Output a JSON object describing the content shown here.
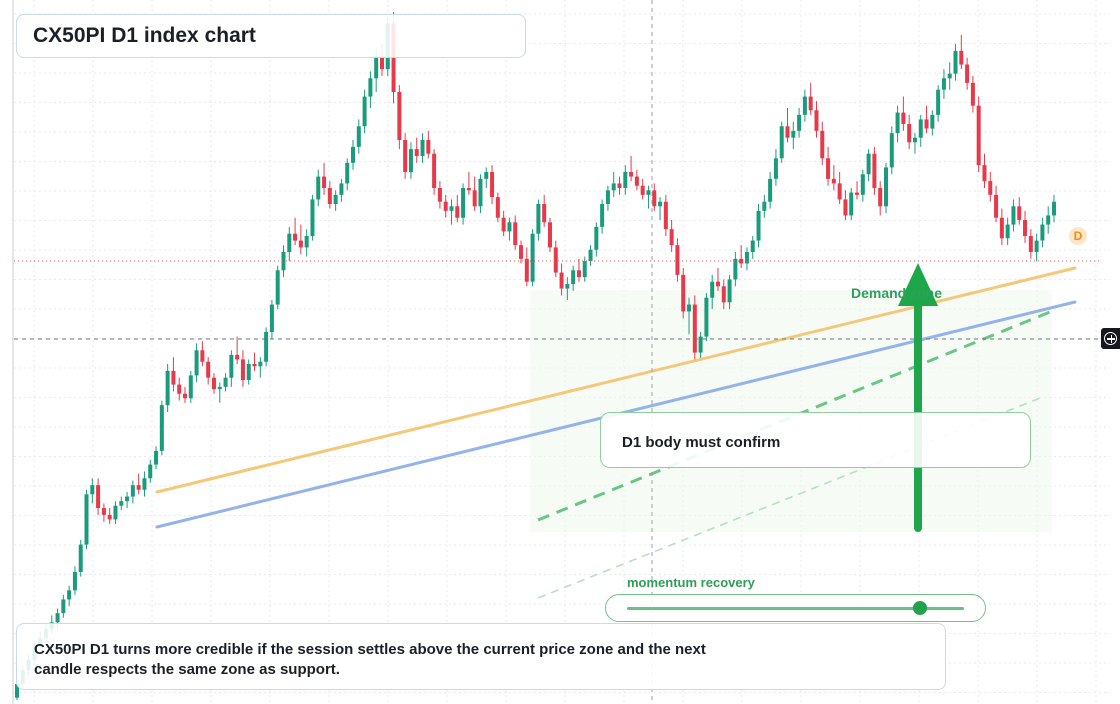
{
  "title": "CX50PI D1 index chart",
  "annotations": {
    "zone_label": "Demand zone",
    "confirm_note": "D1 body must confirm",
    "slider_label": "momentum recovery",
    "slider_value": 0.87,
    "marker_letter": "D"
  },
  "note": "CX50PI D1 turns more credible if the session settles above the current price zone and the next candle respects the same zone as support.",
  "colors": {
    "up": "#1a9c7c",
    "down": "#e8394a",
    "trend_orange": "#f5c878",
    "trend_blue": "#93b3ea",
    "accent_green": "#1ea64a",
    "price_line": "#d9534f"
  },
  "icons": {
    "crosshair": "crosshair-plus-icon"
  },
  "chart_data": {
    "type": "candlestick",
    "title": "CX50PI D1 index chart",
    "grid": true,
    "last_price_line": true,
    "candles": [
      {
        "o": 80,
        "h": 95,
        "l": 78,
        "c": 92
      },
      {
        "o": 92,
        "h": 108,
        "l": 88,
        "c": 104
      },
      {
        "o": 104,
        "h": 118,
        "l": 100,
        "c": 113
      },
      {
        "o": 113,
        "h": 130,
        "l": 110,
        "c": 126
      },
      {
        "o": 126,
        "h": 138,
        "l": 122,
        "c": 132
      },
      {
        "o": 132,
        "h": 145,
        "l": 128,
        "c": 140
      },
      {
        "o": 140,
        "h": 152,
        "l": 136,
        "c": 146
      },
      {
        "o": 146,
        "h": 158,
        "l": 140,
        "c": 154
      },
      {
        "o": 154,
        "h": 170,
        "l": 150,
        "c": 166
      },
      {
        "o": 166,
        "h": 178,
        "l": 160,
        "c": 174
      },
      {
        "o": 174,
        "h": 195,
        "l": 170,
        "c": 190
      },
      {
        "o": 190,
        "h": 218,
        "l": 186,
        "c": 214
      },
      {
        "o": 214,
        "h": 262,
        "l": 210,
        "c": 258
      },
      {
        "o": 258,
        "h": 272,
        "l": 250,
        "c": 266
      },
      {
        "o": 266,
        "h": 272,
        "l": 240,
        "c": 246
      },
      {
        "o": 246,
        "h": 250,
        "l": 234,
        "c": 240
      },
      {
        "o": 240,
        "h": 246,
        "l": 232,
        "c": 236
      },
      {
        "o": 236,
        "h": 252,
        "l": 232,
        "c": 248
      },
      {
        "o": 248,
        "h": 256,
        "l": 244,
        "c": 252
      },
      {
        "o": 252,
        "h": 260,
        "l": 246,
        "c": 256
      },
      {
        "o": 256,
        "h": 270,
        "l": 250,
        "c": 266
      },
      {
        "o": 266,
        "h": 276,
        "l": 258,
        "c": 262
      },
      {
        "o": 262,
        "h": 278,
        "l": 256,
        "c": 272
      },
      {
        "o": 272,
        "h": 288,
        "l": 268,
        "c": 284
      },
      {
        "o": 284,
        "h": 300,
        "l": 280,
        "c": 296
      },
      {
        "o": 296,
        "h": 340,
        "l": 292,
        "c": 336
      },
      {
        "o": 336,
        "h": 372,
        "l": 330,
        "c": 366
      },
      {
        "o": 366,
        "h": 378,
        "l": 348,
        "c": 354
      },
      {
        "o": 354,
        "h": 360,
        "l": 340,
        "c": 346
      },
      {
        "o": 346,
        "h": 352,
        "l": 338,
        "c": 342
      },
      {
        "o": 342,
        "h": 366,
        "l": 338,
        "c": 362
      },
      {
        "o": 362,
        "h": 390,
        "l": 356,
        "c": 384
      },
      {
        "o": 384,
        "h": 392,
        "l": 370,
        "c": 374
      },
      {
        "o": 374,
        "h": 378,
        "l": 354,
        "c": 360
      },
      {
        "o": 360,
        "h": 364,
        "l": 346,
        "c": 350
      },
      {
        "o": 350,
        "h": 356,
        "l": 338,
        "c": 352
      },
      {
        "o": 352,
        "h": 364,
        "l": 348,
        "c": 360
      },
      {
        "o": 360,
        "h": 384,
        "l": 352,
        "c": 380
      },
      {
        "o": 380,
        "h": 396,
        "l": 372,
        "c": 376
      },
      {
        "o": 376,
        "h": 384,
        "l": 352,
        "c": 358
      },
      {
        "o": 358,
        "h": 376,
        "l": 354,
        "c": 372
      },
      {
        "o": 372,
        "h": 382,
        "l": 366,
        "c": 370
      },
      {
        "o": 370,
        "h": 378,
        "l": 360,
        "c": 374
      },
      {
        "o": 374,
        "h": 404,
        "l": 370,
        "c": 400
      },
      {
        "o": 400,
        "h": 428,
        "l": 394,
        "c": 424
      },
      {
        "o": 424,
        "h": 458,
        "l": 420,
        "c": 454
      },
      {
        "o": 454,
        "h": 476,
        "l": 448,
        "c": 470
      },
      {
        "o": 470,
        "h": 492,
        "l": 462,
        "c": 486
      },
      {
        "o": 486,
        "h": 500,
        "l": 476,
        "c": 480
      },
      {
        "o": 480,
        "h": 494,
        "l": 468,
        "c": 474
      },
      {
        "o": 474,
        "h": 490,
        "l": 466,
        "c": 484
      },
      {
        "o": 484,
        "h": 520,
        "l": 480,
        "c": 516
      },
      {
        "o": 516,
        "h": 542,
        "l": 510,
        "c": 536
      },
      {
        "o": 536,
        "h": 548,
        "l": 520,
        "c": 526
      },
      {
        "o": 526,
        "h": 532,
        "l": 508,
        "c": 512
      },
      {
        "o": 512,
        "h": 524,
        "l": 506,
        "c": 520
      },
      {
        "o": 520,
        "h": 534,
        "l": 514,
        "c": 530
      },
      {
        "o": 530,
        "h": 552,
        "l": 524,
        "c": 548
      },
      {
        "o": 548,
        "h": 568,
        "l": 542,
        "c": 562
      },
      {
        "o": 562,
        "h": 586,
        "l": 556,
        "c": 580
      },
      {
        "o": 580,
        "h": 612,
        "l": 574,
        "c": 606
      },
      {
        "o": 606,
        "h": 628,
        "l": 596,
        "c": 622
      },
      {
        "o": 622,
        "h": 648,
        "l": 610,
        "c": 640
      },
      {
        "o": 640,
        "h": 652,
        "l": 624,
        "c": 630
      },
      {
        "o": 630,
        "h": 676,
        "l": 624,
        "c": 670
      },
      {
        "o": 670,
        "h": 680,
        "l": 600,
        "c": 610
      },
      {
        "o": 610,
        "h": 616,
        "l": 560,
        "c": 568
      },
      {
        "o": 568,
        "h": 574,
        "l": 534,
        "c": 540
      },
      {
        "o": 540,
        "h": 566,
        "l": 534,
        "c": 560
      },
      {
        "o": 560,
        "h": 570,
        "l": 548,
        "c": 554
      },
      {
        "o": 554,
        "h": 574,
        "l": 548,
        "c": 568
      },
      {
        "o": 568,
        "h": 576,
        "l": 552,
        "c": 556
      },
      {
        "o": 556,
        "h": 560,
        "l": 520,
        "c": 526
      },
      {
        "o": 526,
        "h": 532,
        "l": 508,
        "c": 514
      },
      {
        "o": 514,
        "h": 520,
        "l": 500,
        "c": 506
      },
      {
        "o": 506,
        "h": 516,
        "l": 494,
        "c": 510
      },
      {
        "o": 510,
        "h": 520,
        "l": 496,
        "c": 500
      },
      {
        "o": 500,
        "h": 530,
        "l": 494,
        "c": 526
      },
      {
        "o": 526,
        "h": 540,
        "l": 520,
        "c": 524
      },
      {
        "o": 524,
        "h": 536,
        "l": 506,
        "c": 510
      },
      {
        "o": 510,
        "h": 538,
        "l": 504,
        "c": 534
      },
      {
        "o": 534,
        "h": 544,
        "l": 526,
        "c": 540
      },
      {
        "o": 540,
        "h": 546,
        "l": 512,
        "c": 518
      },
      {
        "o": 518,
        "h": 522,
        "l": 496,
        "c": 500
      },
      {
        "o": 500,
        "h": 506,
        "l": 484,
        "c": 488
      },
      {
        "o": 488,
        "h": 500,
        "l": 480,
        "c": 496
      },
      {
        "o": 496,
        "h": 502,
        "l": 472,
        "c": 476
      },
      {
        "o": 476,
        "h": 480,
        "l": 460,
        "c": 464
      },
      {
        "o": 464,
        "h": 474,
        "l": 440,
        "c": 444
      },
      {
        "o": 444,
        "h": 490,
        "l": 440,
        "c": 486
      },
      {
        "o": 486,
        "h": 516,
        "l": 480,
        "c": 512
      },
      {
        "o": 512,
        "h": 520,
        "l": 492,
        "c": 496
      },
      {
        "o": 496,
        "h": 500,
        "l": 470,
        "c": 474
      },
      {
        "o": 474,
        "h": 480,
        "l": 448,
        "c": 452
      },
      {
        "o": 452,
        "h": 460,
        "l": 432,
        "c": 438
      },
      {
        "o": 438,
        "h": 448,
        "l": 428,
        "c": 442
      },
      {
        "o": 442,
        "h": 458,
        "l": 436,
        "c": 454
      },
      {
        "o": 454,
        "h": 464,
        "l": 444,
        "c": 448
      },
      {
        "o": 448,
        "h": 466,
        "l": 444,
        "c": 462
      },
      {
        "o": 462,
        "h": 476,
        "l": 458,
        "c": 472
      },
      {
        "o": 472,
        "h": 496,
        "l": 466,
        "c": 492
      },
      {
        "o": 492,
        "h": 516,
        "l": 486,
        "c": 512
      },
      {
        "o": 512,
        "h": 528,
        "l": 506,
        "c": 524
      },
      {
        "o": 524,
        "h": 540,
        "l": 518,
        "c": 530
      },
      {
        "o": 530,
        "h": 536,
        "l": 520,
        "c": 526
      },
      {
        "o": 526,
        "h": 546,
        "l": 520,
        "c": 540
      },
      {
        "o": 540,
        "h": 554,
        "l": 532,
        "c": 536
      },
      {
        "o": 536,
        "h": 542,
        "l": 524,
        "c": 528
      },
      {
        "o": 528,
        "h": 534,
        "l": 516,
        "c": 520
      },
      {
        "o": 520,
        "h": 528,
        "l": 508,
        "c": 524
      },
      {
        "o": 524,
        "h": 530,
        "l": 506,
        "c": 510
      },
      {
        "o": 510,
        "h": 518,
        "l": 498,
        "c": 514
      },
      {
        "o": 514,
        "h": 520,
        "l": 484,
        "c": 490
      },
      {
        "o": 490,
        "h": 498,
        "l": 470,
        "c": 476
      },
      {
        "o": 476,
        "h": 482,
        "l": 444,
        "c": 450
      },
      {
        "o": 450,
        "h": 456,
        "l": 412,
        "c": 418
      },
      {
        "o": 418,
        "h": 430,
        "l": 398,
        "c": 424
      },
      {
        "o": 424,
        "h": 432,
        "l": 376,
        "c": 382
      },
      {
        "o": 382,
        "h": 400,
        "l": 376,
        "c": 396
      },
      {
        "o": 396,
        "h": 434,
        "l": 392,
        "c": 430
      },
      {
        "o": 430,
        "h": 450,
        "l": 420,
        "c": 444
      },
      {
        "o": 444,
        "h": 456,
        "l": 436,
        "c": 440
      },
      {
        "o": 440,
        "h": 446,
        "l": 420,
        "c": 426
      },
      {
        "o": 426,
        "h": 450,
        "l": 420,
        "c": 446
      },
      {
        "o": 446,
        "h": 470,
        "l": 440,
        "c": 464
      },
      {
        "o": 464,
        "h": 476,
        "l": 456,
        "c": 460
      },
      {
        "o": 460,
        "h": 474,
        "l": 454,
        "c": 470
      },
      {
        "o": 470,
        "h": 484,
        "l": 464,
        "c": 480
      },
      {
        "o": 480,
        "h": 512,
        "l": 474,
        "c": 506
      },
      {
        "o": 506,
        "h": 520,
        "l": 500,
        "c": 514
      },
      {
        "o": 514,
        "h": 540,
        "l": 508,
        "c": 534
      },
      {
        "o": 534,
        "h": 560,
        "l": 528,
        "c": 552
      },
      {
        "o": 552,
        "h": 584,
        "l": 548,
        "c": 580
      },
      {
        "o": 580,
        "h": 596,
        "l": 566,
        "c": 570
      },
      {
        "o": 570,
        "h": 584,
        "l": 560,
        "c": 576
      },
      {
        "o": 576,
        "h": 596,
        "l": 570,
        "c": 590
      },
      {
        "o": 590,
        "h": 612,
        "l": 584,
        "c": 606
      },
      {
        "o": 606,
        "h": 618,
        "l": 590,
        "c": 594
      },
      {
        "o": 594,
        "h": 602,
        "l": 570,
        "c": 576
      },
      {
        "o": 576,
        "h": 584,
        "l": 546,
        "c": 552
      },
      {
        "o": 552,
        "h": 562,
        "l": 528,
        "c": 534
      },
      {
        "o": 534,
        "h": 546,
        "l": 524,
        "c": 530
      },
      {
        "o": 530,
        "h": 540,
        "l": 512,
        "c": 516
      },
      {
        "o": 516,
        "h": 524,
        "l": 498,
        "c": 502
      },
      {
        "o": 502,
        "h": 526,
        "l": 498,
        "c": 522
      },
      {
        "o": 522,
        "h": 532,
        "l": 516,
        "c": 520
      },
      {
        "o": 520,
        "h": 542,
        "l": 514,
        "c": 538
      },
      {
        "o": 538,
        "h": 560,
        "l": 532,
        "c": 556
      },
      {
        "o": 556,
        "h": 562,
        "l": 520,
        "c": 526
      },
      {
        "o": 526,
        "h": 532,
        "l": 502,
        "c": 510
      },
      {
        "o": 510,
        "h": 548,
        "l": 504,
        "c": 544
      },
      {
        "o": 544,
        "h": 580,
        "l": 538,
        "c": 574
      },
      {
        "o": 574,
        "h": 598,
        "l": 566,
        "c": 592
      },
      {
        "o": 592,
        "h": 606,
        "l": 576,
        "c": 582
      },
      {
        "o": 582,
        "h": 590,
        "l": 560,
        "c": 566
      },
      {
        "o": 566,
        "h": 574,
        "l": 556,
        "c": 570
      },
      {
        "o": 570,
        "h": 590,
        "l": 562,
        "c": 586
      },
      {
        "o": 586,
        "h": 598,
        "l": 574,
        "c": 578
      },
      {
        "o": 578,
        "h": 594,
        "l": 572,
        "c": 590
      },
      {
        "o": 590,
        "h": 616,
        "l": 584,
        "c": 612
      },
      {
        "o": 612,
        "h": 630,
        "l": 604,
        "c": 622
      },
      {
        "o": 622,
        "h": 636,
        "l": 612,
        "c": 626
      },
      {
        "o": 626,
        "h": 652,
        "l": 620,
        "c": 646
      },
      {
        "o": 646,
        "h": 660,
        "l": 630,
        "c": 634
      },
      {
        "o": 634,
        "h": 640,
        "l": 612,
        "c": 618
      },
      {
        "o": 618,
        "h": 624,
        "l": 592,
        "c": 598
      },
      {
        "o": 598,
        "h": 606,
        "l": 540,
        "c": 546
      },
      {
        "o": 546,
        "h": 556,
        "l": 526,
        "c": 532
      },
      {
        "o": 532,
        "h": 540,
        "l": 514,
        "c": 520
      },
      {
        "o": 520,
        "h": 528,
        "l": 496,
        "c": 500
      },
      {
        "o": 500,
        "h": 508,
        "l": 476,
        "c": 482
      },
      {
        "o": 482,
        "h": 500,
        "l": 476,
        "c": 494
      },
      {
        "o": 494,
        "h": 516,
        "l": 488,
        "c": 510
      },
      {
        "o": 510,
        "h": 518,
        "l": 494,
        "c": 498
      },
      {
        "o": 498,
        "h": 506,
        "l": 478,
        "c": 484
      },
      {
        "o": 484,
        "h": 490,
        "l": 464,
        "c": 470
      },
      {
        "o": 470,
        "h": 486,
        "l": 462,
        "c": 480
      },
      {
        "o": 480,
        "h": 500,
        "l": 474,
        "c": 494
      },
      {
        "o": 494,
        "h": 510,
        "l": 486,
        "c": 502
      },
      {
        "o": 502,
        "h": 520,
        "l": 496,
        "c": 514
      }
    ]
  }
}
